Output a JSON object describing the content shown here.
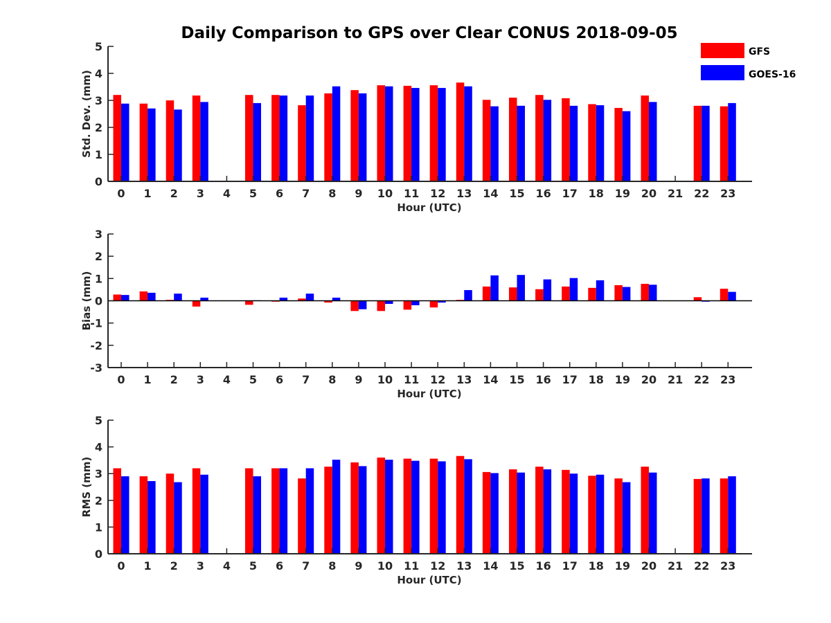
{
  "chart_data": {
    "type": "bar",
    "title": "Daily Comparison to GPS over Clear CONUS 2018-09-05",
    "categories": [
      "0",
      "1",
      "2",
      "3",
      "4",
      "5",
      "6",
      "7",
      "8",
      "9",
      "10",
      "11",
      "12",
      "13",
      "14",
      "15",
      "16",
      "17",
      "18",
      "19",
      "20",
      "21",
      "22",
      "23"
    ],
    "legend": {
      "placement": "top-right",
      "entries": [
        {
          "name": "GFS",
          "color": "#ff0000"
        },
        {
          "name": "GOES-16",
          "color": "#0000ff"
        }
      ]
    },
    "panels": [
      {
        "id": "std",
        "ylabel": "Std. Dev. (mm)",
        "xlabel": "Hour (UTC)",
        "ylim": [
          0,
          5
        ],
        "yticks": [
          "0",
          "1",
          "2",
          "3",
          "4",
          "5"
        ],
        "series": [
          {
            "name": "GFS",
            "color": "#ff0000",
            "values": [
              3.2,
              2.88,
              3.0,
              3.18,
              null,
              3.2,
              3.2,
              2.82,
              3.26,
              3.38,
              3.56,
              3.54,
              3.56,
              3.66,
              3.02,
              3.1,
              3.2,
              3.08,
              2.86,
              2.72,
              3.18,
              null,
              2.8,
              2.78
            ]
          },
          {
            "name": "GOES-16",
            "color": "#0000ff",
            "values": [
              2.88,
              2.7,
              2.66,
              2.94,
              null,
              2.9,
              3.18,
              3.18,
              3.52,
              3.26,
              3.52,
              3.46,
              3.46,
              3.52,
              2.78,
              2.8,
              3.02,
              2.8,
              2.82,
              2.6,
              2.94,
              null,
              2.8,
              2.9
            ]
          }
        ]
      },
      {
        "id": "bias",
        "ylabel": "Bias (mm)",
        "xlabel": "Hour (UTC)",
        "ylim": [
          -3,
          3
        ],
        "yticks": [
          "-3",
          "-2",
          "-1",
          "0",
          "1",
          "2",
          "3"
        ],
        "series": [
          {
            "name": "GFS",
            "color": "#ff0000",
            "values": [
              0.28,
              0.42,
              0.04,
              -0.26,
              null,
              -0.18,
              -0.04,
              0.1,
              -0.08,
              -0.46,
              -0.46,
              -0.4,
              -0.3,
              0.04,
              0.64,
              0.6,
              0.52,
              0.64,
              0.58,
              0.7,
              0.76,
              null,
              0.16,
              0.54
            ]
          },
          {
            "name": "GOES-16",
            "color": "#0000ff",
            "values": [
              0.26,
              0.36,
              0.32,
              0.14,
              null,
              0.02,
              0.14,
              0.32,
              0.14,
              -0.38,
              -0.14,
              -0.2,
              -0.08,
              0.48,
              1.14,
              1.16,
              0.96,
              1.02,
              0.92,
              0.62,
              0.72,
              null,
              -0.04,
              0.4
            ]
          }
        ]
      },
      {
        "id": "rms",
        "ylabel": "RMS (mm)",
        "xlabel": "Hour (UTC)",
        "ylim": [
          0,
          5
        ],
        "yticks": [
          "0",
          "1",
          "2",
          "3",
          "4",
          "5"
        ],
        "series": [
          {
            "name": "GFS",
            "color": "#ff0000",
            "values": [
              3.2,
              2.9,
              3.0,
              3.2,
              null,
              3.2,
              3.2,
              2.82,
              3.26,
              3.42,
              3.6,
              3.56,
              3.56,
              3.66,
              3.06,
              3.16,
              3.26,
              3.14,
              2.92,
              2.82,
              3.26,
              null,
              2.8,
              2.82
            ]
          },
          {
            "name": "GOES-16",
            "color": "#0000ff",
            "values": [
              2.9,
              2.72,
              2.68,
              2.96,
              null,
              2.9,
              3.2,
              3.2,
              3.52,
              3.28,
              3.52,
              3.48,
              3.46,
              3.54,
              3.02,
              3.04,
              3.16,
              3.0,
              2.96,
              2.68,
              3.04,
              null,
              2.82,
              2.9
            ]
          }
        ]
      }
    ]
  }
}
